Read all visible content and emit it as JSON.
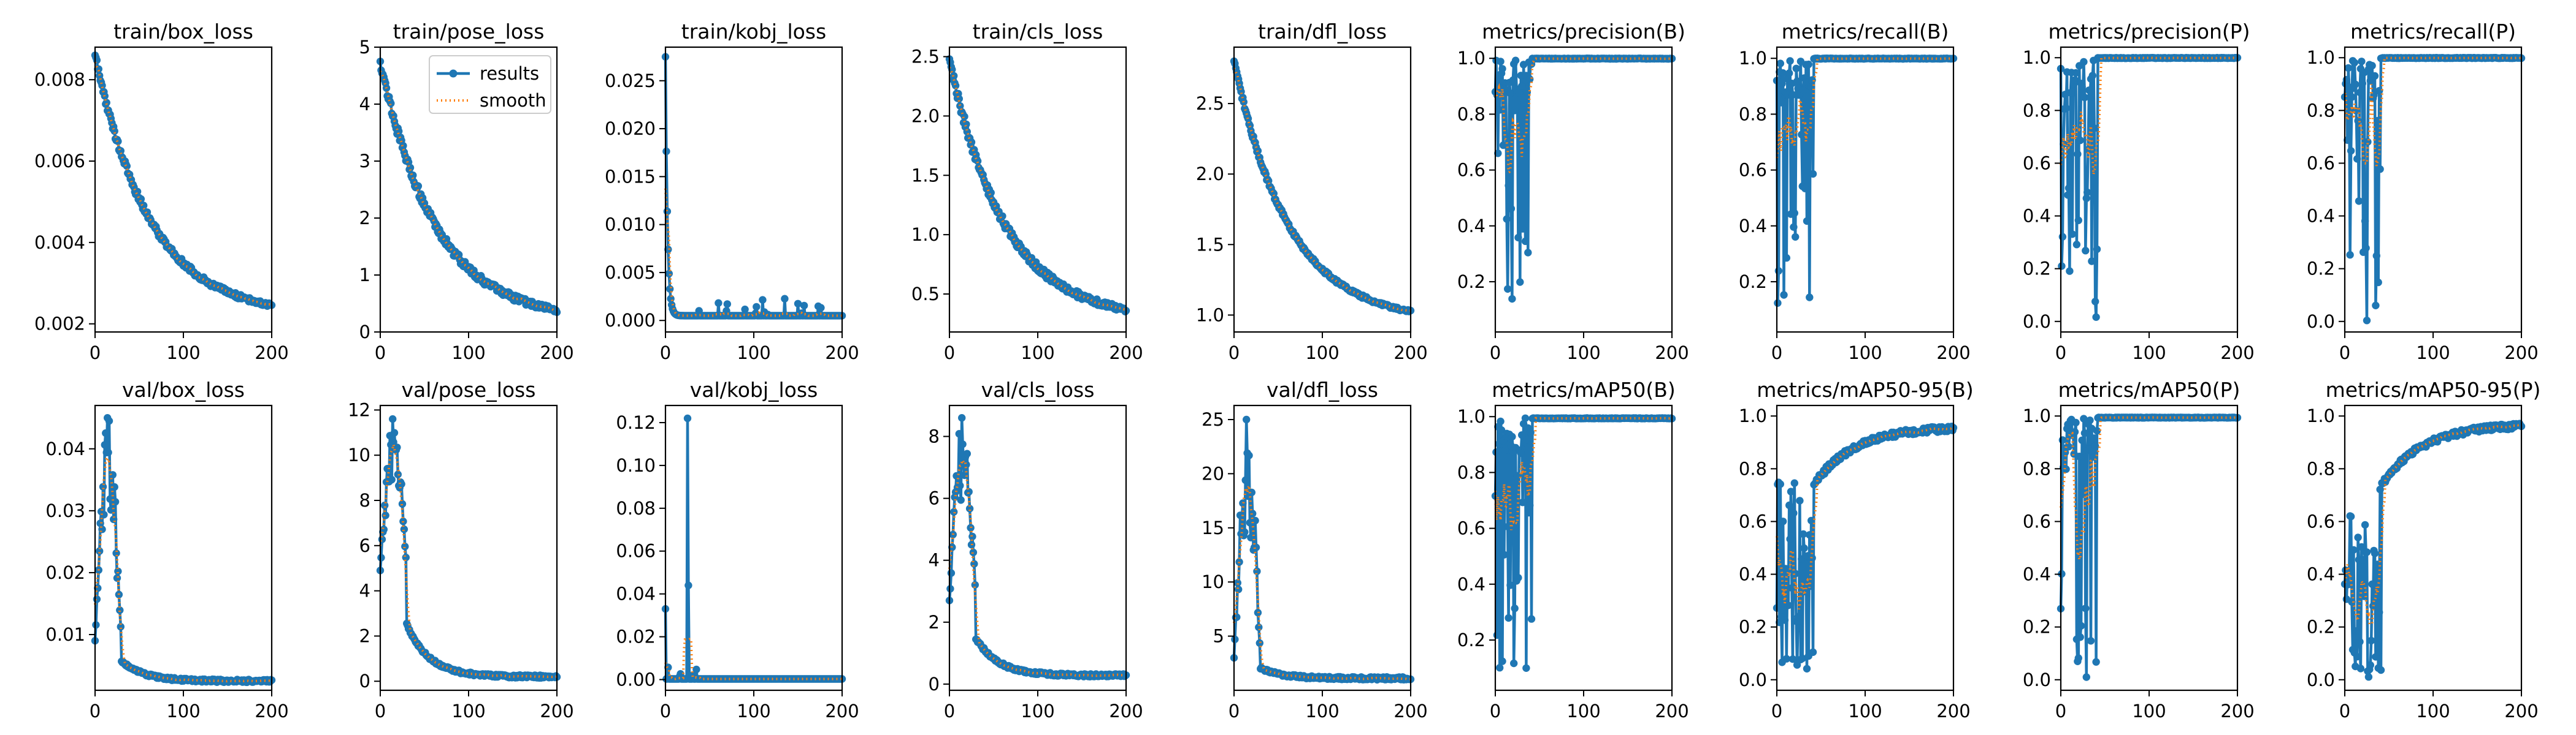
{
  "figure": {
    "legend": {
      "placement": "top-right of second panel",
      "entries": [
        {
          "label": "results",
          "color": "#1f77b4",
          "style": "line with dots"
        },
        {
          "label": "smooth",
          "color": "#ff7f0e",
          "style": "dotted line"
        }
      ]
    },
    "colors": {
      "results": "#1f77b4",
      "smooth": "#ff7f0e"
    }
  },
  "chart_data": [
    {
      "type": "line",
      "title": "train/box_loss",
      "xlim": [
        0,
        200
      ],
      "ylim": [
        0.0018,
        0.0088
      ],
      "xticks": [
        "0",
        "100",
        "200"
      ],
      "yticks": [
        0.002,
        0.004,
        0.006,
        0.008
      ],
      "ytick_labels": [
        "0.002",
        "0.004",
        "0.006",
        "0.008"
      ],
      "shape": "decay",
      "start": 0.0086,
      "end": 0.0022,
      "noise": 0.08,
      "legend": false,
      "series": [
        {
          "name": "results"
        },
        {
          "name": "smooth"
        }
      ]
    },
    {
      "type": "line",
      "title": "train/pose_loss",
      "xlim": [
        0,
        200
      ],
      "ylim": [
        0,
        5
      ],
      "xticks": [
        "0",
        "100",
        "200"
      ],
      "yticks": [
        0,
        1,
        2,
        3,
        4,
        5
      ],
      "ytick_labels": [
        "0",
        "1",
        "2",
        "3",
        "4",
        "5"
      ],
      "shape": "decay",
      "start": 4.75,
      "end": 0.2,
      "noise": 0.1,
      "legend": true,
      "series": [
        {
          "name": "results"
        },
        {
          "name": "smooth"
        }
      ]
    },
    {
      "type": "line",
      "title": "train/kobj_loss",
      "xlim": [
        0,
        200
      ],
      "ylim": [
        -0.0012,
        0.0285
      ],
      "xticks": [
        "0",
        "100",
        "200"
      ],
      "yticks": [
        0,
        0.005,
        0.01,
        0.015,
        0.02,
        0.025
      ],
      "ytick_labels": [
        "0.000",
        "0.005",
        "0.010",
        "0.015",
        "0.020",
        "0.025"
      ],
      "shape": "spike_decay",
      "start": 0.0275,
      "end": 0.0005,
      "noise": 0.3,
      "legend": false,
      "series": [
        {
          "name": "results"
        },
        {
          "name": "smooth"
        }
      ]
    },
    {
      "type": "line",
      "title": "train/cls_loss",
      "xlim": [
        0,
        200
      ],
      "ylim": [
        0.18,
        2.58
      ],
      "xticks": [
        "0",
        "100",
        "200"
      ],
      "yticks": [
        0.5,
        1.0,
        1.5,
        2.0,
        2.5
      ],
      "ytick_labels": [
        "0.5",
        "1.0",
        "1.5",
        "2.0",
        "2.5"
      ],
      "shape": "decay",
      "start": 2.48,
      "end": 0.28,
      "noise": 0.1,
      "legend": false,
      "series": [
        {
          "name": "results"
        },
        {
          "name": "smooth"
        }
      ]
    },
    {
      "type": "line",
      "title": "train/dfl_loss",
      "xlim": [
        0,
        200
      ],
      "ylim": [
        0.88,
        2.9
      ],
      "xticks": [
        "0",
        "100",
        "200"
      ],
      "yticks": [
        1.0,
        1.5,
        2.0,
        2.5
      ],
      "ytick_labels": [
        "1.0",
        "1.5",
        "2.0",
        "2.5"
      ],
      "shape": "decay",
      "start": 2.8,
      "end": 0.95,
      "noise": 0.05,
      "legend": false,
      "series": [
        {
          "name": "results"
        },
        {
          "name": "smooth"
        }
      ]
    },
    {
      "type": "line",
      "title": "metrics/precision(B)",
      "xlim": [
        0,
        200
      ],
      "ylim": [
        0.02,
        1.04
      ],
      "xticks": [
        "0",
        "100",
        "200"
      ],
      "yticks": [
        0.2,
        0.4,
        0.6,
        0.8,
        1.0
      ],
      "ytick_labels": [
        "0.2",
        "0.4",
        "0.6",
        "0.8",
        "1.0"
      ],
      "shape": "metric_high",
      "start": 0.05,
      "end": 1.0,
      "noise": 0.5,
      "legend": false,
      "series": [
        {
          "name": "results"
        },
        {
          "name": "smooth"
        }
      ]
    },
    {
      "type": "line",
      "title": "metrics/recall(B)",
      "xlim": [
        0,
        200
      ],
      "ylim": [
        0.02,
        1.04
      ],
      "xticks": [
        "0",
        "100",
        "200"
      ],
      "yticks": [
        0.2,
        0.4,
        0.6,
        0.8,
        1.0
      ],
      "ytick_labels": [
        "0.2",
        "0.4",
        "0.6",
        "0.8",
        "1.0"
      ],
      "shape": "metric_high",
      "start": 0.05,
      "end": 1.0,
      "noise": 0.5,
      "legend": false,
      "series": [
        {
          "name": "results"
        },
        {
          "name": "smooth"
        }
      ]
    },
    {
      "type": "line",
      "title": "metrics/precision(P)",
      "xlim": [
        0,
        200
      ],
      "ylim": [
        -0.04,
        1.04
      ],
      "xticks": [
        "0",
        "100",
        "200"
      ],
      "yticks": [
        0,
        0.2,
        0.4,
        0.6,
        0.8,
        1.0
      ],
      "ytick_labels": [
        "0.0",
        "0.2",
        "0.4",
        "0.6",
        "0.8",
        "1.0"
      ],
      "shape": "metric_high",
      "start": 0.0,
      "end": 1.0,
      "noise": 0.5,
      "legend": false,
      "series": [
        {
          "name": "results"
        },
        {
          "name": "smooth"
        }
      ]
    },
    {
      "type": "line",
      "title": "metrics/recall(P)",
      "xlim": [
        0,
        200
      ],
      "ylim": [
        -0.04,
        1.04
      ],
      "xticks": [
        "0",
        "100",
        "200"
      ],
      "yticks": [
        0,
        0.2,
        0.4,
        0.6,
        0.8,
        1.0
      ],
      "ytick_labels": [
        "0.0",
        "0.2",
        "0.4",
        "0.6",
        "0.8",
        "1.0"
      ],
      "shape": "metric_high",
      "start": 0.0,
      "end": 1.0,
      "noise": 0.5,
      "legend": false,
      "series": [
        {
          "name": "results"
        },
        {
          "name": "smooth"
        }
      ]
    },
    {
      "type": "line",
      "title": "val/box_loss",
      "xlim": [
        0,
        200
      ],
      "ylim": [
        0.001,
        0.047
      ],
      "xticks": [
        "0",
        "100",
        "200"
      ],
      "yticks": [
        0.01,
        0.02,
        0.03,
        0.04
      ],
      "ytick_labels": [
        "0.01",
        "0.02",
        "0.03",
        "0.04"
      ],
      "shape": "hump",
      "start": 0.009,
      "peak": 0.045,
      "end": 0.0025,
      "noise": 0.1,
      "legend": false,
      "series": [
        {
          "name": "results"
        },
        {
          "name": "smooth"
        }
      ]
    },
    {
      "type": "line",
      "title": "val/pose_loss",
      "xlim": [
        0,
        200
      ],
      "ylim": [
        -0.4,
        12.2
      ],
      "xticks": [
        "0",
        "100",
        "200"
      ],
      "yticks": [
        0,
        2,
        4,
        6,
        8,
        10,
        12
      ],
      "ytick_labels": [
        "0",
        "2",
        "4",
        "6",
        "8",
        "10",
        "12"
      ],
      "shape": "hump",
      "start": 4.9,
      "peak": 11.6,
      "end": 0.2,
      "noise": 0.2,
      "legend": false,
      "series": [
        {
          "name": "results"
        },
        {
          "name": "smooth"
        }
      ]
    },
    {
      "type": "line",
      "title": "val/kobj_loss",
      "xlim": [
        0,
        200
      ],
      "ylim": [
        -0.005,
        0.128
      ],
      "xticks": [
        "0",
        "100",
        "200"
      ],
      "yticks": [
        0,
        0.02,
        0.04,
        0.06,
        0.08,
        0.1,
        0.12
      ],
      "ytick_labels": [
        "0.00",
        "0.02",
        "0.04",
        "0.06",
        "0.08",
        "0.10",
        "0.12"
      ],
      "shape": "spike_flat",
      "start": 0.033,
      "peak": 0.122,
      "end": 0.0003,
      "noise": 0.1,
      "legend": false,
      "series": [
        {
          "name": "results"
        },
        {
          "name": "smooth"
        }
      ]
    },
    {
      "type": "line",
      "title": "val/cls_loss",
      "xlim": [
        0,
        200
      ],
      "ylim": [
        -0.2,
        9.0
      ],
      "xticks": [
        "0",
        "100",
        "200"
      ],
      "yticks": [
        0,
        2,
        4,
        6,
        8
      ],
      "ytick_labels": [
        "0",
        "2",
        "4",
        "6",
        "8"
      ],
      "shape": "hump",
      "start": 2.7,
      "peak": 8.6,
      "end": 0.28,
      "noise": 0.2,
      "legend": false,
      "series": [
        {
          "name": "results"
        },
        {
          "name": "smooth"
        }
      ]
    },
    {
      "type": "line",
      "title": "val/dfl_loss",
      "xlim": [
        0,
        200
      ],
      "ylim": [
        0,
        26.3
      ],
      "xticks": [
        "0",
        "100",
        "200"
      ],
      "yticks": [
        5,
        10,
        15,
        20,
        25
      ],
      "ytick_labels": [
        "5",
        "10",
        "15",
        "20",
        "25"
      ],
      "shape": "hump",
      "start": 3.0,
      "peak": 25.0,
      "end": 1.1,
      "noise": 0.2,
      "legend": false,
      "series": [
        {
          "name": "results"
        },
        {
          "name": "smooth"
        }
      ]
    },
    {
      "type": "line",
      "title": "metrics/mAP50(B)",
      "xlim": [
        0,
        200
      ],
      "ylim": [
        0.02,
        1.04
      ],
      "xticks": [
        "0",
        "100",
        "200"
      ],
      "yticks": [
        0.2,
        0.4,
        0.6,
        0.8,
        1.0
      ],
      "ytick_labels": [
        "0.2",
        "0.4",
        "0.6",
        "0.8",
        "1.0"
      ],
      "shape": "metric_high",
      "start": 0.05,
      "end": 0.995,
      "noise": 0.5,
      "legend": false,
      "series": [
        {
          "name": "results"
        },
        {
          "name": "smooth"
        }
      ]
    },
    {
      "type": "line",
      "title": "metrics/mAP50-95(B)",
      "xlim": [
        0,
        200
      ],
      "ylim": [
        -0.04,
        1.04
      ],
      "xticks": [
        "0",
        "100",
        "200"
      ],
      "yticks": [
        0,
        0.2,
        0.4,
        0.6,
        0.8,
        1.0
      ],
      "ytick_labels": [
        "0.0",
        "0.2",
        "0.4",
        "0.6",
        "0.8",
        "1.0"
      ],
      "shape": "metric_rise",
      "start": 0.02,
      "end": 0.97,
      "noise": 0.5,
      "legend": false,
      "series": [
        {
          "name": "results"
        },
        {
          "name": "smooth"
        }
      ]
    },
    {
      "type": "line",
      "title": "metrics/mAP50(P)",
      "xlim": [
        0,
        200
      ],
      "ylim": [
        -0.04,
        1.04
      ],
      "xticks": [
        "0",
        "100",
        "200"
      ],
      "yticks": [
        0,
        0.2,
        0.4,
        0.6,
        0.8,
        1.0
      ],
      "ytick_labels": [
        "0.0",
        "0.2",
        "0.4",
        "0.6",
        "0.8",
        "1.0"
      ],
      "shape": "metric_high",
      "start": 0.0,
      "end": 0.995,
      "noise": 0.5,
      "legend": false,
      "series": [
        {
          "name": "results"
        },
        {
          "name": "smooth"
        }
      ]
    },
    {
      "type": "line",
      "title": "metrics/mAP50-95(P)",
      "xlim": [
        0,
        200
      ],
      "ylim": [
        -0.04,
        1.04
      ],
      "xticks": [
        "0",
        "100",
        "200"
      ],
      "yticks": [
        0,
        0.2,
        0.4,
        0.6,
        0.8,
        1.0
      ],
      "ytick_labels": [
        "0.0",
        "0.2",
        "0.4",
        "0.6",
        "0.8",
        "1.0"
      ],
      "shape": "metric_rise",
      "start": 0.0,
      "end": 0.98,
      "noise": 0.5,
      "legend": false,
      "series": [
        {
          "name": "results"
        },
        {
          "name": "smooth"
        }
      ]
    }
  ]
}
